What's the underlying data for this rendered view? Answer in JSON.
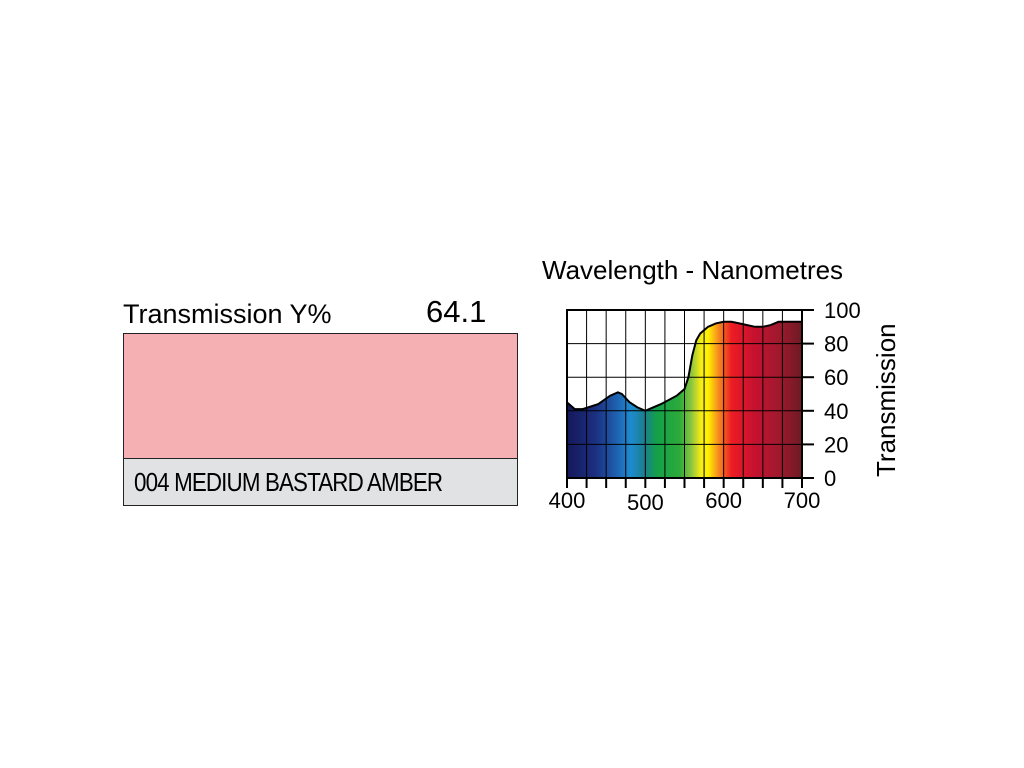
{
  "transmission": {
    "label": "Transmission Y%",
    "value": "64.1"
  },
  "swatch": {
    "color": "#f5b0b3"
  },
  "filter": {
    "name": "004 MEDIUM BASTARD AMBER"
  },
  "chart_data": {
    "type": "area",
    "title": "Wavelength - Nanometres",
    "xlabel": "",
    "ylabel": "Transmission",
    "xlim": [
      400,
      700
    ],
    "ylim": [
      0,
      100
    ],
    "x_ticks": [
      400,
      500,
      600,
      700
    ],
    "x_tick_labels": [
      "400",
      "500",
      "600",
      "700"
    ],
    "y_ticks": [
      0,
      20,
      40,
      60,
      80,
      100
    ],
    "y_tick_labels": [
      "0",
      "20",
      "40",
      "60",
      "80",
      "100"
    ],
    "grid": true,
    "fill": "visible spectrum gradient",
    "series": [
      {
        "x": [
          400,
          410,
          420,
          440,
          455,
          465,
          470,
          480,
          490,
          500,
          505,
          520,
          540,
          550,
          555,
          560,
          565,
          570,
          575,
          580,
          590,
          600,
          610,
          620,
          630,
          640,
          650,
          660,
          670,
          680,
          690,
          700
        ],
        "values": [
          45,
          41,
          41,
          44,
          49,
          51,
          50,
          45,
          42,
          40,
          41,
          44,
          49,
          53,
          60,
          73,
          82,
          86,
          88,
          90,
          92,
          93,
          93,
          92,
          91,
          90,
          90,
          91,
          93,
          93,
          93,
          93
        ]
      }
    ]
  }
}
